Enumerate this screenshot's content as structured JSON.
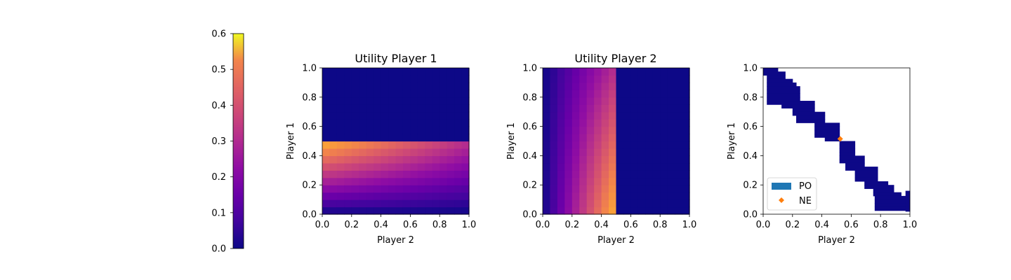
{
  "chart_data": [
    {
      "type": "colorbar",
      "colormap": "plasma",
      "ylim": [
        0,
        0.6
      ],
      "ticks": [
        "0.0",
        "0.1",
        "0.2",
        "0.3",
        "0.4",
        "0.5",
        "0.6"
      ],
      "tick_values": [
        0,
        0.1,
        0.2,
        0.3,
        0.4,
        0.5,
        0.6
      ]
    },
    {
      "type": "heatmap",
      "title": "Utility Player 1",
      "xlabel": "Player 2",
      "ylabel": "Player 1",
      "xlim": [
        0,
        1
      ],
      "ylim": [
        0,
        1
      ],
      "xticks": [
        "0.0",
        "0.2",
        "0.4",
        "0.6",
        "0.8",
        "1.0"
      ],
      "yticks": [
        "0.0",
        "0.2",
        "0.4",
        "0.6",
        "0.8",
        "1.0"
      ],
      "colormap": "plasma",
      "vmin": 0,
      "vmax": 0.6,
      "grid": 20,
      "description": "value = p1*(1 - p2/2) for p1 < 0.525, else 0",
      "threshold": 0.525
    },
    {
      "type": "heatmap",
      "title": "Utility Player 2",
      "xlabel": "Player 2",
      "ylabel": "Player 1",
      "xlim": [
        0,
        1
      ],
      "ylim": [
        0,
        1
      ],
      "xticks": [
        "0.0",
        "0.2",
        "0.4",
        "0.6",
        "0.8",
        "1.0"
      ],
      "yticks": [
        "0.0",
        "0.2",
        "0.4",
        "0.6",
        "0.8",
        "1.0"
      ],
      "colormap": "plasma",
      "vmin": 0,
      "vmax": 0.6,
      "grid": 20,
      "description": "value = p2*(1 - p1/2) for p2 < 0.525, else 0",
      "threshold": 0.525
    },
    {
      "type": "heatmap",
      "xlabel": "Player 2",
      "ylabel": "Player 1",
      "xlim": [
        0,
        1
      ],
      "ylim": [
        0,
        1
      ],
      "xticks": [
        "0.0",
        "0.2",
        "0.4",
        "0.6",
        "0.8",
        "1.0"
      ],
      "yticks": [
        "0.0",
        "0.2",
        "0.4",
        "0.6",
        "0.8",
        "1.0"
      ],
      "legend": {
        "placement": "lower-left",
        "entries": [
          {
            "label": "PO",
            "marker": "rect",
            "color": "#1f77b4"
          },
          {
            "label": "NE",
            "marker": "diamond",
            "color": "#ff7f0e"
          }
        ]
      },
      "po_color": "#0d0887",
      "po_cells": [
        [
          0,
          0.95,
          0.1,
          1
        ],
        [
          0.1,
          0.95,
          0.15,
          0.975
        ],
        [
          0.025,
          0.925,
          0.15,
          0.95
        ],
        [
          0.025,
          0.9,
          0.2,
          0.925
        ],
        [
          0.025,
          0.875,
          0.225,
          0.9
        ],
        [
          0.025,
          0.85,
          0.25,
          0.875
        ],
        [
          0.025,
          0.825,
          0.25,
          0.85
        ],
        [
          0.025,
          0.8,
          0.25,
          0.825
        ],
        [
          0.025,
          0.775,
          0.25,
          0.8
        ],
        [
          0.025,
          0.75,
          0.35,
          0.775
        ],
        [
          0.125,
          0.725,
          0.35,
          0.75
        ],
        [
          0.2,
          0.7,
          0.35,
          0.725
        ],
        [
          0.2,
          0.675,
          0.42,
          0.7
        ],
        [
          0.225,
          0.65,
          0.42,
          0.675
        ],
        [
          0.225,
          0.625,
          0.42,
          0.65
        ],
        [
          0.35,
          0.6,
          0.52,
          0.625
        ],
        [
          0.35,
          0.575,
          0.52,
          0.6
        ],
        [
          0.35,
          0.55,
          0.52,
          0.575
        ],
        [
          0.35,
          0.525,
          0.52,
          0.55
        ],
        [
          0.42,
          0.5,
          0.52,
          0.525
        ],
        [
          0.52,
          0.475,
          0.625,
          0.5
        ],
        [
          0.52,
          0.45,
          0.625,
          0.475
        ],
        [
          0.52,
          0.425,
          0.625,
          0.45
        ],
        [
          0.52,
          0.4,
          0.625,
          0.425
        ],
        [
          0.52,
          0.375,
          0.69,
          0.4
        ],
        [
          0.52,
          0.35,
          0.69,
          0.375
        ],
        [
          0.56,
          0.325,
          0.69,
          0.35
        ],
        [
          0.56,
          0.3,
          0.78,
          0.325
        ],
        [
          0.625,
          0.275,
          0.78,
          0.3
        ],
        [
          0.625,
          0.25,
          0.78,
          0.275
        ],
        [
          0.625,
          0.225,
          0.78,
          0.25
        ],
        [
          0.69,
          0.2,
          0.85,
          0.225
        ],
        [
          0.69,
          0.175,
          0.89,
          0.2
        ],
        [
          0.75,
          0.15,
          0.89,
          0.175
        ],
        [
          0.75,
          0.125,
          0.94,
          0.15
        ],
        [
          0.76,
          0.1,
          0.97,
          0.125
        ],
        [
          0.76,
          0.075,
          0.97,
          0.1
        ],
        [
          0.76,
          0.05,
          0.97,
          0.075
        ],
        [
          0.76,
          0.025,
          0.97,
          0.05
        ],
        [
          0.97,
          0.02,
          1,
          0.1
        ],
        [
          0.97,
          0.1,
          1,
          0.16
        ]
      ],
      "ne_point": {
        "x": 0.525,
        "y": 0.515
      }
    }
  ]
}
